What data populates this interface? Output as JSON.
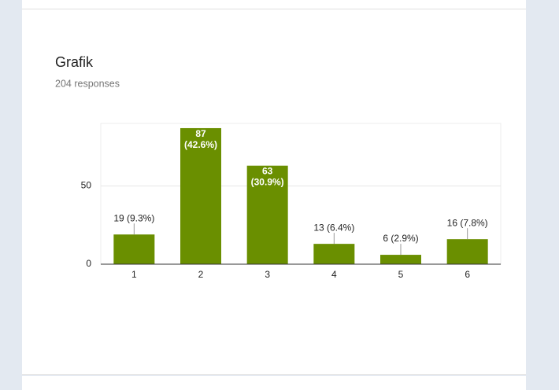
{
  "chart_data": {
    "type": "bar",
    "title": "Grafik",
    "subtitle": "204 responses",
    "categories": [
      "1",
      "2",
      "3",
      "4",
      "5",
      "6"
    ],
    "values": [
      19,
      87,
      63,
      13,
      6,
      16
    ],
    "value_labels": [
      "19 (9.3%)",
      "87 (42.6%)",
      "63 (30.9%)",
      "13 (6.4%)",
      "6 (2.9%)",
      "16 (7.8%)"
    ],
    "color": "#6a8f00",
    "ylim": [
      0,
      90
    ],
    "yticks": [
      0,
      50
    ],
    "grid": true
  }
}
